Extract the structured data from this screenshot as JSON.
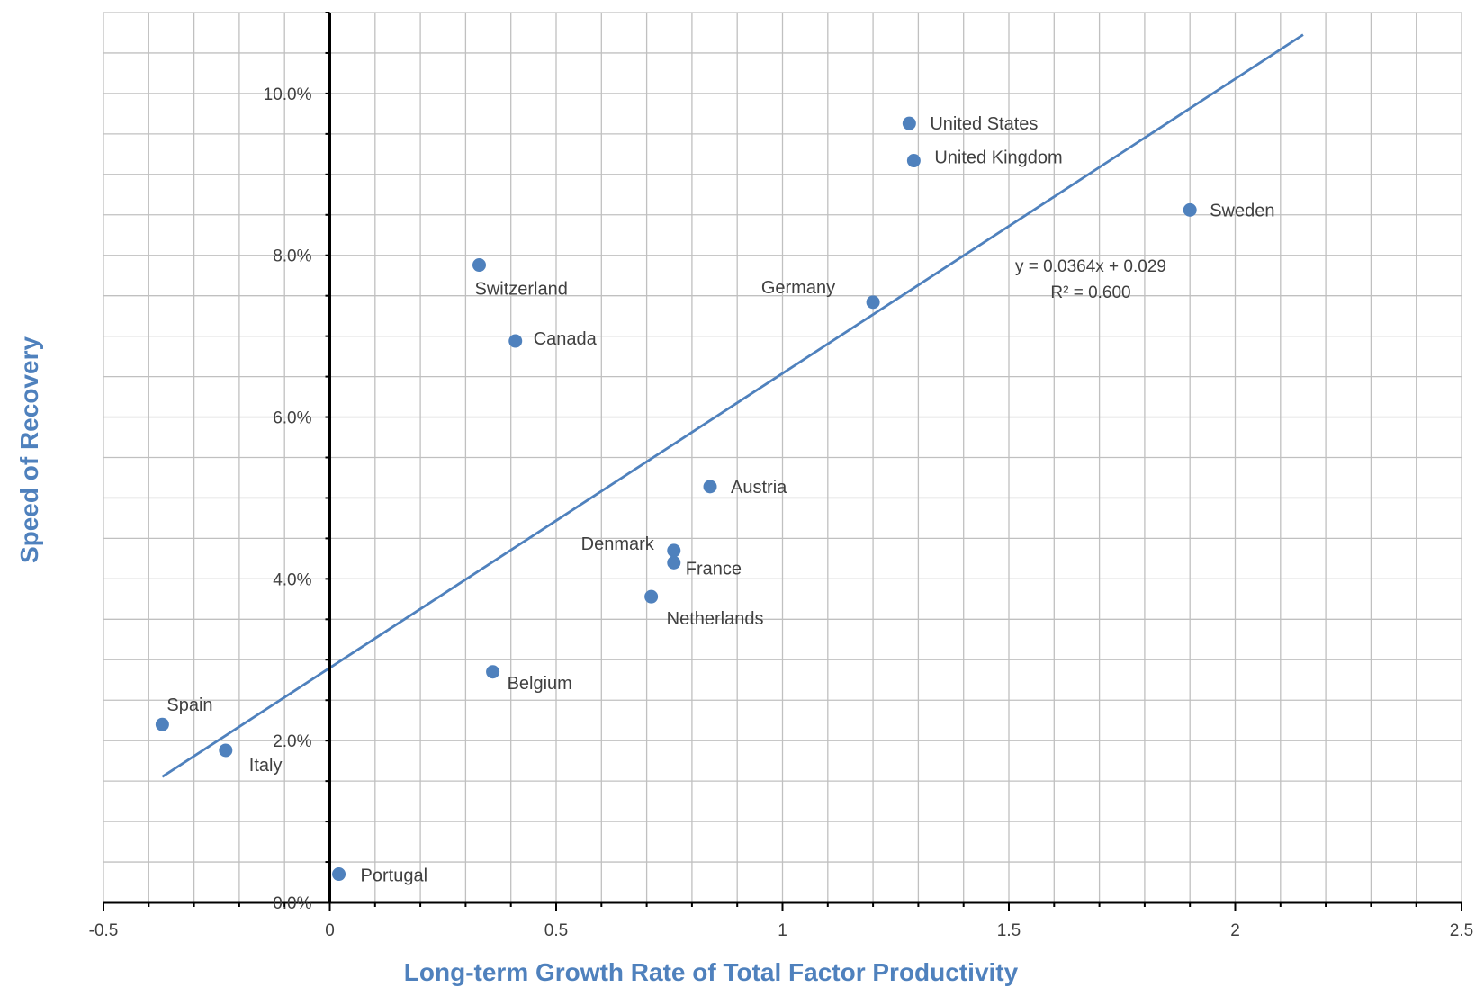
{
  "chart_data": {
    "type": "scatter",
    "title": "",
    "xlabel": "Long-term Growth Rate of Total Factor Productivity",
    "ylabel": "Speed of Recovery",
    "xlim": [
      -0.5,
      2.5
    ],
    "ylim": [
      0.0,
      0.11
    ],
    "x_ticks": [
      -0.5,
      0,
      0.5,
      1,
      1.5,
      2,
      2.5
    ],
    "x_tick_labels": [
      "-0.5",
      "0",
      "0.5",
      "1",
      "1.5",
      "2",
      "2.5"
    ],
    "y_ticks": [
      0.0,
      0.02,
      0.04,
      0.06,
      0.08,
      0.1
    ],
    "y_tick_labels": [
      "0.0%",
      "2.0%",
      "4.0%",
      "6.0%",
      "8.0%",
      "10.0%"
    ],
    "grid": true,
    "marker_color": "#4f81bd",
    "points": [
      {
        "label": "United States",
        "x": 1.28,
        "y": 0.0963
      },
      {
        "label": "United Kingdom",
        "x": 1.29,
        "y": 0.0917
      },
      {
        "label": "Sweden",
        "x": 1.9,
        "y": 0.0856
      },
      {
        "label": "Germany",
        "x": 1.2,
        "y": 0.0742
      },
      {
        "label": "Switzerland",
        "x": 0.33,
        "y": 0.0788
      },
      {
        "label": "Canada",
        "x": 0.41,
        "y": 0.0694
      },
      {
        "label": "Austria",
        "x": 0.84,
        "y": 0.0514
      },
      {
        "label": "Denmark",
        "x": 0.76,
        "y": 0.0435
      },
      {
        "label": "France",
        "x": 0.76,
        "y": 0.042
      },
      {
        "label": "Netherlands",
        "x": 0.71,
        "y": 0.0378
      },
      {
        "label": "Belgium",
        "x": 0.36,
        "y": 0.0285
      },
      {
        "label": "Spain",
        "x": -0.37,
        "y": 0.022
      },
      {
        "label": "Italy",
        "x": -0.23,
        "y": 0.0188
      },
      {
        "label": "Portugal",
        "x": 0.02,
        "y": 0.0035
      }
    ],
    "trendline": {
      "type": "linear",
      "slope": 0.0364,
      "intercept": 0.029,
      "x_range": [
        -0.37,
        2.15
      ],
      "equation_label": "y = 0.0364x + 0.029",
      "r2_label": "R² = 0.600"
    }
  }
}
